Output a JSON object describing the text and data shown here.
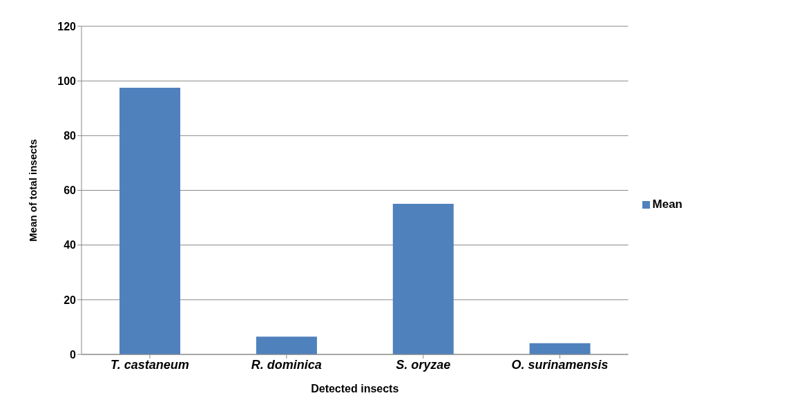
{
  "chart_data": {
    "type": "bar",
    "xlabel": "Detected insects",
    "ylabel": "Mean of total insects",
    "categories": [
      "T. castaneum",
      "R. dominica",
      "S. oryzae",
      "O. surinamensis"
    ],
    "series": [
      {
        "name": "Mean",
        "color": "#4f81bd",
        "values": [
          97.5,
          6.5,
          55.1,
          4.1
        ]
      }
    ],
    "ylim": [
      0,
      120
    ],
    "yticks": [
      0,
      20,
      40,
      60,
      80,
      100,
      120
    ],
    "grid": "y",
    "legend": "right"
  }
}
